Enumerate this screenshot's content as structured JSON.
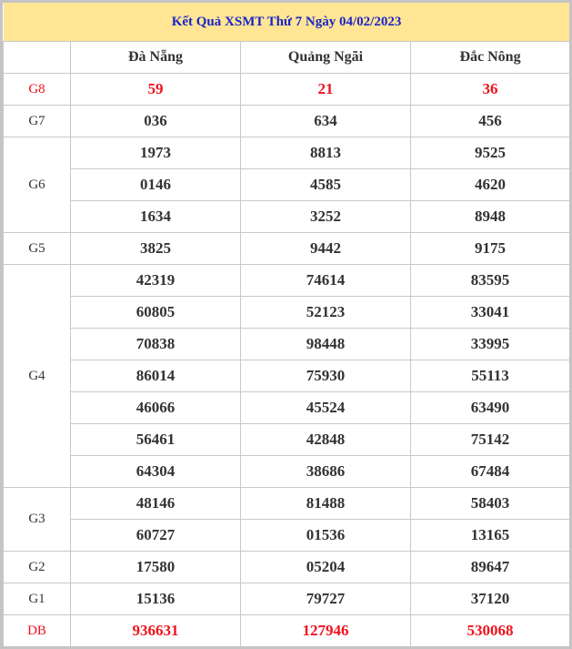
{
  "title": "Kết Quả XSMT Thứ 7 Ngày 04/02/2023",
  "provinces": [
    "Đà Nẵng",
    "Quảng Ngãi",
    "Đắc Nông"
  ],
  "highlight_color": "#f0121e",
  "prizes": [
    {
      "label": "G8",
      "highlight": true,
      "rows": [
        [
          "59",
          "21",
          "36"
        ]
      ]
    },
    {
      "label": "G7",
      "rows": [
        [
          "036",
          "634",
          "456"
        ]
      ]
    },
    {
      "label": "G6",
      "rows": [
        [
          "1973",
          "8813",
          "9525"
        ],
        [
          "0146",
          "4585",
          "4620"
        ],
        [
          "1634",
          "3252",
          "8948"
        ]
      ]
    },
    {
      "label": "G5",
      "rows": [
        [
          "3825",
          "9442",
          "9175"
        ]
      ]
    },
    {
      "label": "G4",
      "rows": [
        [
          "42319",
          "74614",
          "83595"
        ],
        [
          "60805",
          "52123",
          "33041"
        ],
        [
          "70838",
          "98448",
          "33995"
        ],
        [
          "86014",
          "75930",
          "55113"
        ],
        [
          "46066",
          "45524",
          "63490"
        ],
        [
          "56461",
          "42848",
          "75142"
        ],
        [
          "64304",
          "38686",
          "67484"
        ]
      ]
    },
    {
      "label": "G3",
      "rows": [
        [
          "48146",
          "81488",
          "58403"
        ],
        [
          "60727",
          "01536",
          "13165"
        ]
      ]
    },
    {
      "label": "G2",
      "rows": [
        [
          "17580",
          "05204",
          "89647"
        ]
      ]
    },
    {
      "label": "G1",
      "rows": [
        [
          "15136",
          "79727",
          "37120"
        ]
      ]
    },
    {
      "label": "DB",
      "highlight": true,
      "rows": [
        [
          "936631",
          "127946",
          "530068"
        ]
      ]
    }
  ]
}
